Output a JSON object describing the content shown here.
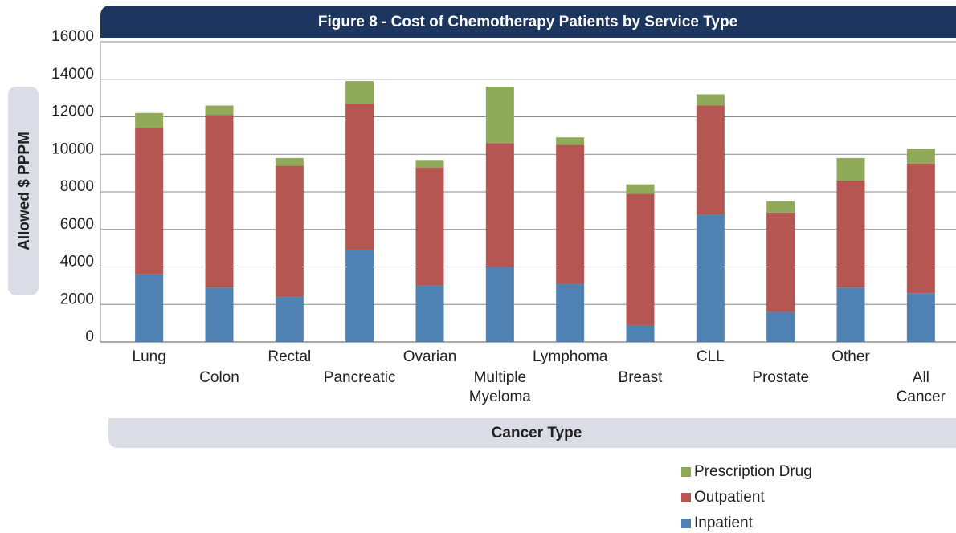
{
  "chart_data": {
    "type": "bar",
    "stacked": true,
    "title": "Figure 8 - Cost of Chemotherapy Patients by Service Type",
    "y_label": "Allowed $ PPPM",
    "x_label": "Cancer Type",
    "categories": [
      "Lung",
      "Colon",
      "Rectal",
      "Pancreatic",
      "Ovarian",
      "Multiple Myeloma",
      "Lymphoma",
      "Breast",
      "CLL",
      "Prostate",
      "Other",
      "All Cancer"
    ],
    "series": [
      {
        "name": "Inpatient",
        "color": "#4f81b3",
        "values": [
          3600,
          2900,
          2400,
          4900,
          3000,
          4000,
          3100,
          900,
          6800,
          1600,
          2900,
          2600
        ]
      },
      {
        "name": "Outpatient",
        "color": "#b55652",
        "values": [
          7800,
          9200,
          7000,
          7800,
          6300,
          6600,
          7400,
          7000,
          5800,
          5300,
          5700,
          6900
        ]
      },
      {
        "name": "Prescription Drug",
        "color": "#8fab5a",
        "values": [
          800,
          500,
          400,
          1200,
          400,
          3000,
          400,
          500,
          600,
          600,
          1200,
          800
        ]
      }
    ],
    "ylim": [
      0,
      16000
    ],
    "yticks": [
      0,
      2000,
      4000,
      6000,
      8000,
      10000,
      12000,
      14000,
      16000
    ],
    "grid": true
  }
}
